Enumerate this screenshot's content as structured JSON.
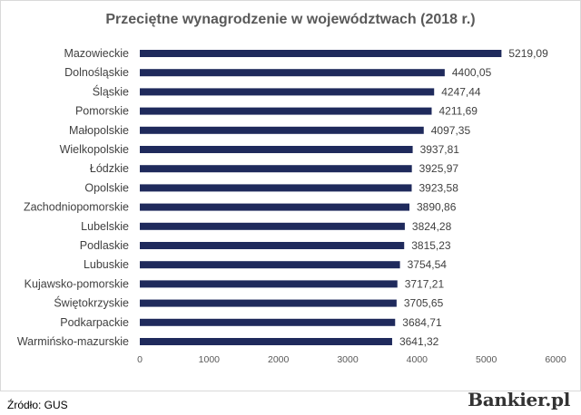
{
  "chart_data": {
    "type": "bar",
    "orientation": "horizontal",
    "title": "Przeciętne wynagrodzenie w województwach (2018 r.)",
    "categories": [
      "Mazowieckie",
      "Dolnośląskie",
      "Śląskie",
      "Pomorskie",
      "Małopolskie",
      "Wielkopolskie",
      "Łódzkie",
      "Opolskie",
      "Zachodniopomorskie",
      "Lubelskie",
      "Podlaskie",
      "Lubuskie",
      "Kujawsko-pomorskie",
      "Świętokrzyskie",
      "Podkarpackie",
      "Warmińsko-mazurskie"
    ],
    "values": [
      5219.09,
      4400.05,
      4247.44,
      4211.69,
      4097.35,
      3937.81,
      3925.97,
      3923.58,
      3890.86,
      3824.28,
      3815.23,
      3754.54,
      3717.21,
      3705.65,
      3684.71,
      3641.32
    ],
    "value_labels": [
      "5219,09",
      "4400,05",
      "4247,44",
      "4211,69",
      "4097,35",
      "3937,81",
      "3925,97",
      "3923,58",
      "3890,86",
      "3824,28",
      "3815,23",
      "3754,54",
      "3717,21",
      "3705,65",
      "3684,71",
      "3641,32"
    ],
    "x_ticks": [
      "0",
      "1000",
      "2000",
      "3000",
      "4000",
      "5000",
      "6000"
    ],
    "xlim": [
      0,
      6000
    ],
    "bar_color": "#1f2a5c",
    "grid": false,
    "legend": "none"
  },
  "footer": {
    "source": "Źródło: GUS",
    "brand": "Bankier.pl"
  }
}
